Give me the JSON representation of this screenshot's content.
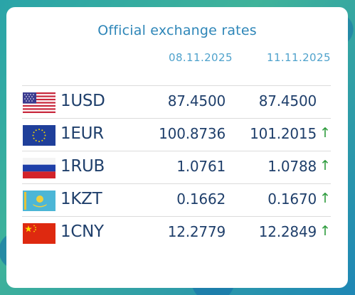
{
  "title": "Official exchange rates",
  "dates": [
    "08.11.2025",
    "11.11.2025"
  ],
  "rows": [
    {
      "code": "1USD",
      "flag": "us-flag-icon",
      "rate1": "87.4500",
      "rate2": "87.4500",
      "arrow": ""
    },
    {
      "code": "1EUR",
      "flag": "eu-flag-icon",
      "rate1": "100.8736",
      "rate2": "101.2015",
      "arrow": "↑"
    },
    {
      "code": "1RUB",
      "flag": "ru-flag-icon",
      "rate1": "1.0761",
      "rate2": "1.0788",
      "arrow": "↑"
    },
    {
      "code": "1KZT",
      "flag": "kz-flag-icon",
      "rate1": "0.1662",
      "rate2": "0.1670",
      "arrow": "↑"
    },
    {
      "code": "1CNY",
      "flag": "cn-flag-icon",
      "rate1": "12.2779",
      "rate2": "12.2849",
      "arrow": "↑"
    }
  ],
  "colors": {
    "accent": "#2e86b8",
    "up": "#2a9a3a",
    "text": "#1f3f6b"
  }
}
